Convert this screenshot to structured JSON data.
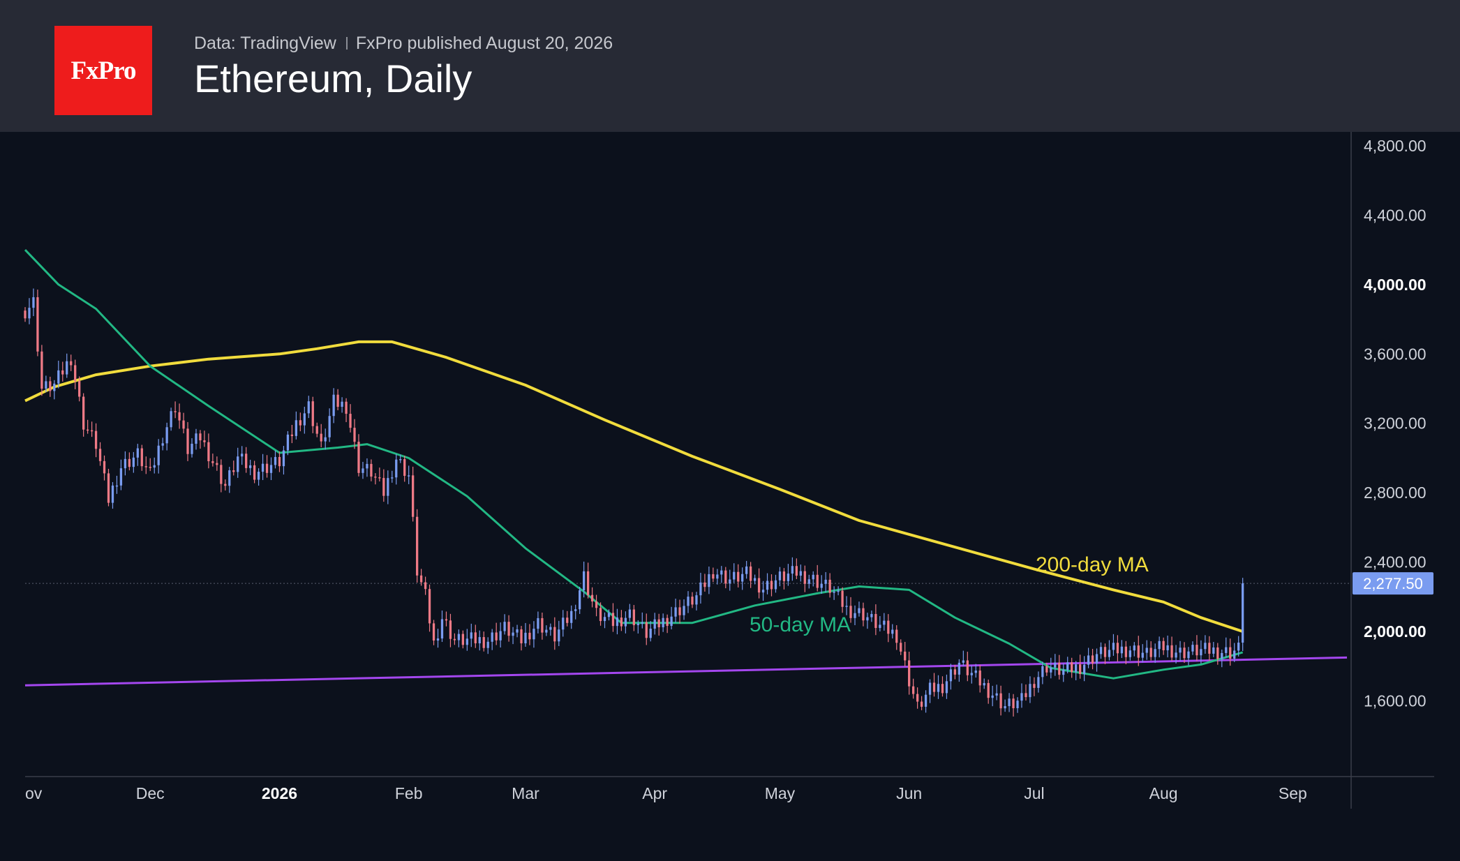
{
  "header": {
    "logo_text": "FxPro",
    "data_source": "Data: TradingView",
    "published": "FxPro published August 20, 2026",
    "title": "Ethereum, Daily"
  },
  "colors": {
    "bullish": "#7a9cf0",
    "bearish": "#ef7a86",
    "ma200": "#f1dc3d",
    "ma50": "#22b884",
    "support": "#a447ee",
    "price_tag": "#7a9cf0"
  },
  "chart_data": {
    "type": "candlestick",
    "title": "Ethereum, Daily",
    "y_ticks": [
      "4,800.00",
      "4,400.00",
      "4,000.00",
      "3,600.00",
      "3,200.00",
      "2,800.00",
      "2,400.00",
      "2,000.00",
      "1,600.00"
    ],
    "y_tick_values": [
      4800,
      4400,
      4000,
      3600,
      3200,
      2800,
      2400,
      2000,
      1600
    ],
    "y_range": [
      1180,
      4880
    ],
    "x_ticks": [
      "ov",
      "Dec",
      "2026",
      "Feb",
      "Mar",
      "Apr",
      "May",
      "Jun",
      "Jul",
      "Aug",
      "Sep"
    ],
    "x_tick_dates": [
      "2025-11-01",
      "2025-12-01",
      "2026-01-01",
      "2026-02-01",
      "2026-03-01",
      "2026-04-01",
      "2026-05-01",
      "2026-06-01",
      "2026-07-01",
      "2026-08-01",
      "2026-09-01"
    ],
    "x_range": [
      "2025-11-01",
      "2026-09-15"
    ],
    "last_price": 2277.5,
    "last_price_label": "2,277.50",
    "annotations": [
      {
        "text": "200-day MA",
        "series": "ma200"
      },
      {
        "text": "50-day MA",
        "series": "ma50"
      }
    ],
    "support_line": [
      {
        "date": "2025-11-01",
        "value": 1690
      },
      {
        "date": "2026-09-14",
        "value": 1850
      }
    ],
    "ma200": [
      [
        "2025-11-01",
        3330
      ],
      [
        "2025-11-08",
        3410
      ],
      [
        "2025-11-18",
        3480
      ],
      [
        "2025-12-01",
        3530
      ],
      [
        "2025-12-15",
        3570
      ],
      [
        "2026-01-01",
        3600
      ],
      [
        "2026-01-10",
        3630
      ],
      [
        "2026-01-20",
        3670
      ],
      [
        "2026-01-28",
        3670
      ],
      [
        "2026-02-10",
        3580
      ],
      [
        "2026-03-01",
        3420
      ],
      [
        "2026-03-20",
        3220
      ],
      [
        "2026-04-10",
        3010
      ],
      [
        "2026-05-01",
        2820
      ],
      [
        "2026-05-20",
        2640
      ],
      [
        "2026-06-10",
        2500
      ],
      [
        "2026-07-01",
        2360
      ],
      [
        "2026-07-20",
        2240
      ],
      [
        "2026-08-01",
        2170
      ],
      [
        "2026-08-10",
        2080
      ],
      [
        "2026-08-20",
        2000
      ]
    ],
    "ma50": [
      [
        "2025-11-01",
        4200
      ],
      [
        "2025-11-09",
        4000
      ],
      [
        "2025-11-18",
        3860
      ],
      [
        "2025-12-01",
        3530
      ],
      [
        "2025-12-15",
        3300
      ],
      [
        "2026-01-01",
        3030
      ],
      [
        "2026-01-15",
        3060
      ],
      [
        "2026-01-22",
        3080
      ],
      [
        "2026-02-01",
        3000
      ],
      [
        "2026-02-15",
        2780
      ],
      [
        "2026-03-01",
        2480
      ],
      [
        "2026-03-15",
        2230
      ],
      [
        "2026-03-24",
        2050
      ],
      [
        "2026-04-10",
        2050
      ],
      [
        "2026-04-25",
        2150
      ],
      [
        "2026-05-10",
        2220
      ],
      [
        "2026-05-20",
        2260
      ],
      [
        "2026-06-01",
        2240
      ],
      [
        "2026-06-12",
        2080
      ],
      [
        "2026-06-25",
        1930
      ],
      [
        "2026-07-05",
        1790
      ],
      [
        "2026-07-20",
        1730
      ],
      [
        "2026-08-01",
        1780
      ],
      [
        "2026-08-10",
        1810
      ],
      [
        "2026-08-20",
        1880
      ]
    ],
    "price_close": [
      [
        "2025-11-01",
        3850
      ],
      [
        "2025-11-03",
        3900
      ],
      [
        "2025-11-05",
        3400
      ],
      [
        "2025-11-08",
        3420
      ],
      [
        "2025-11-12",
        3580
      ],
      [
        "2025-11-15",
        3200
      ],
      [
        "2025-11-18",
        3080
      ],
      [
        "2025-11-21",
        2760
      ],
      [
        "2025-11-24",
        2950
      ],
      [
        "2025-11-28",
        3020
      ],
      [
        "2025-12-01",
        2900
      ],
      [
        "2025-12-04",
        3130
      ],
      [
        "2025-12-07",
        3300
      ],
      [
        "2025-12-10",
        3050
      ],
      [
        "2025-12-13",
        3120
      ],
      [
        "2025-12-16",
        2980
      ],
      [
        "2025-12-19",
        2840
      ],
      [
        "2025-12-22",
        3000
      ],
      [
        "2025-12-26",
        2920
      ],
      [
        "2026-01-01",
        2980
      ],
      [
        "2026-01-05",
        3200
      ],
      [
        "2026-01-08",
        3300
      ],
      [
        "2026-01-11",
        3060
      ],
      [
        "2026-01-14",
        3320
      ],
      [
        "2026-01-17",
        3300
      ],
      [
        "2026-01-20",
        2950
      ],
      [
        "2026-01-23",
        2920
      ],
      [
        "2026-01-26",
        2800
      ],
      [
        "2026-01-29",
        3000
      ],
      [
        "2026-02-01",
        2900
      ],
      [
        "2026-02-03",
        2350
      ],
      [
        "2026-02-05",
        2200
      ],
      [
        "2026-02-07",
        1930
      ],
      [
        "2026-02-09",
        2080
      ],
      [
        "2026-02-12",
        1950
      ],
      [
        "2026-02-16",
        1950
      ],
      [
        "2026-02-20",
        1950
      ],
      [
        "2026-02-24",
        2020
      ],
      [
        "2026-02-28",
        1950
      ],
      [
        "2026-03-04",
        2050
      ],
      [
        "2026-03-08",
        1970
      ],
      [
        "2026-03-12",
        2100
      ],
      [
        "2026-03-15",
        2320
      ],
      [
        "2026-03-18",
        2100
      ],
      [
        "2026-03-22",
        2050
      ],
      [
        "2026-03-26",
        2100
      ],
      [
        "2026-03-30",
        1990
      ],
      [
        "2026-04-03",
        2060
      ],
      [
        "2026-04-07",
        2130
      ],
      [
        "2026-04-11",
        2200
      ],
      [
        "2026-04-15",
        2350
      ],
      [
        "2026-04-19",
        2300
      ],
      [
        "2026-04-23",
        2330
      ],
      [
        "2026-04-27",
        2250
      ],
      [
        "2026-05-01",
        2310
      ],
      [
        "2026-05-05",
        2340
      ],
      [
        "2026-05-09",
        2300
      ],
      [
        "2026-05-13",
        2250
      ],
      [
        "2026-05-17",
        2130
      ],
      [
        "2026-05-21",
        2100
      ],
      [
        "2026-05-25",
        2030
      ],
      [
        "2026-05-29",
        1980
      ],
      [
        "2026-06-01",
        1720
      ],
      [
        "2026-06-03",
        1560
      ],
      [
        "2026-06-06",
        1660
      ],
      [
        "2026-06-09",
        1690
      ],
      [
        "2026-06-13",
        1820
      ],
      [
        "2026-06-17",
        1730
      ],
      [
        "2026-06-21",
        1640
      ],
      [
        "2026-06-24",
        1570
      ],
      [
        "2026-06-28",
        1600
      ],
      [
        "2026-07-01",
        1720
      ],
      [
        "2026-07-04",
        1800
      ],
      [
        "2026-07-08",
        1770
      ],
      [
        "2026-07-12",
        1800
      ],
      [
        "2026-07-16",
        1870
      ],
      [
        "2026-07-20",
        1890
      ],
      [
        "2026-07-24",
        1900
      ],
      [
        "2026-07-28",
        1870
      ],
      [
        "2026-08-01",
        1910
      ],
      [
        "2026-08-05",
        1880
      ],
      [
        "2026-08-09",
        1890
      ],
      [
        "2026-08-13",
        1890
      ],
      [
        "2026-08-17",
        1880
      ],
      [
        "2026-08-19",
        1900
      ],
      [
        "2026-08-20",
        2277.5
      ]
    ]
  }
}
